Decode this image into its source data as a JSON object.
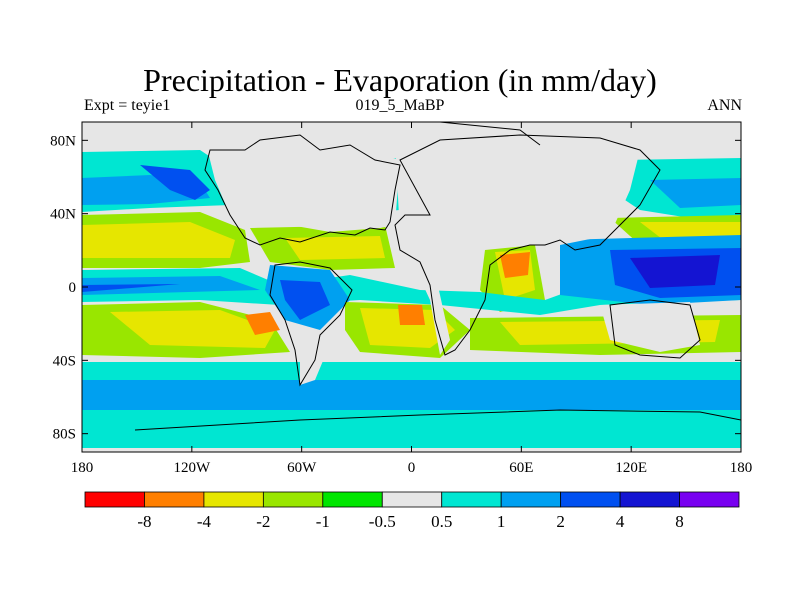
{
  "header": {
    "title": "Precipitation - Evaporation (in mm/day)",
    "left": "Expt = teyie1",
    "center": "019_5_MaBP",
    "right": "ANN"
  },
  "map": {
    "projection": "cylindrical equidistant",
    "lon_range": [
      -180,
      180
    ],
    "lat_range": [
      -90,
      90
    ],
    "x_ticks": [
      {
        "value": -180,
        "label": "180"
      },
      {
        "value": -120,
        "label": "120W"
      },
      {
        "value": -60,
        "label": "60W"
      },
      {
        "value": 0,
        "label": "0"
      },
      {
        "value": 60,
        "label": "60E"
      },
      {
        "value": 120,
        "label": "120E"
      },
      {
        "value": 180,
        "label": "180"
      }
    ],
    "y_ticks": [
      {
        "value": 80,
        "label": "80N"
      },
      {
        "value": 40,
        "label": "40N"
      },
      {
        "value": 0,
        "label": "0"
      },
      {
        "value": -40,
        "label": "40S"
      },
      {
        "value": -80,
        "label": "80S"
      }
    ],
    "levels": [
      -8,
      -4,
      -2,
      -1,
      -0.5,
      0.5,
      1,
      2,
      4,
      8
    ],
    "colors": [
      "#ff0000",
      "#ff7f00",
      "#e6e600",
      "#99e600",
      "#00e600",
      "#e6e6e6",
      "#00e6d2",
      "#00a0f0",
      "#0050f0",
      "#1414d2",
      "#7800f0"
    ]
  },
  "colorbar": {
    "labels": [
      "-8",
      "-4",
      "-2",
      "-1",
      "-0.5",
      "0.5",
      "1",
      "2",
      "4",
      "8"
    ]
  }
}
